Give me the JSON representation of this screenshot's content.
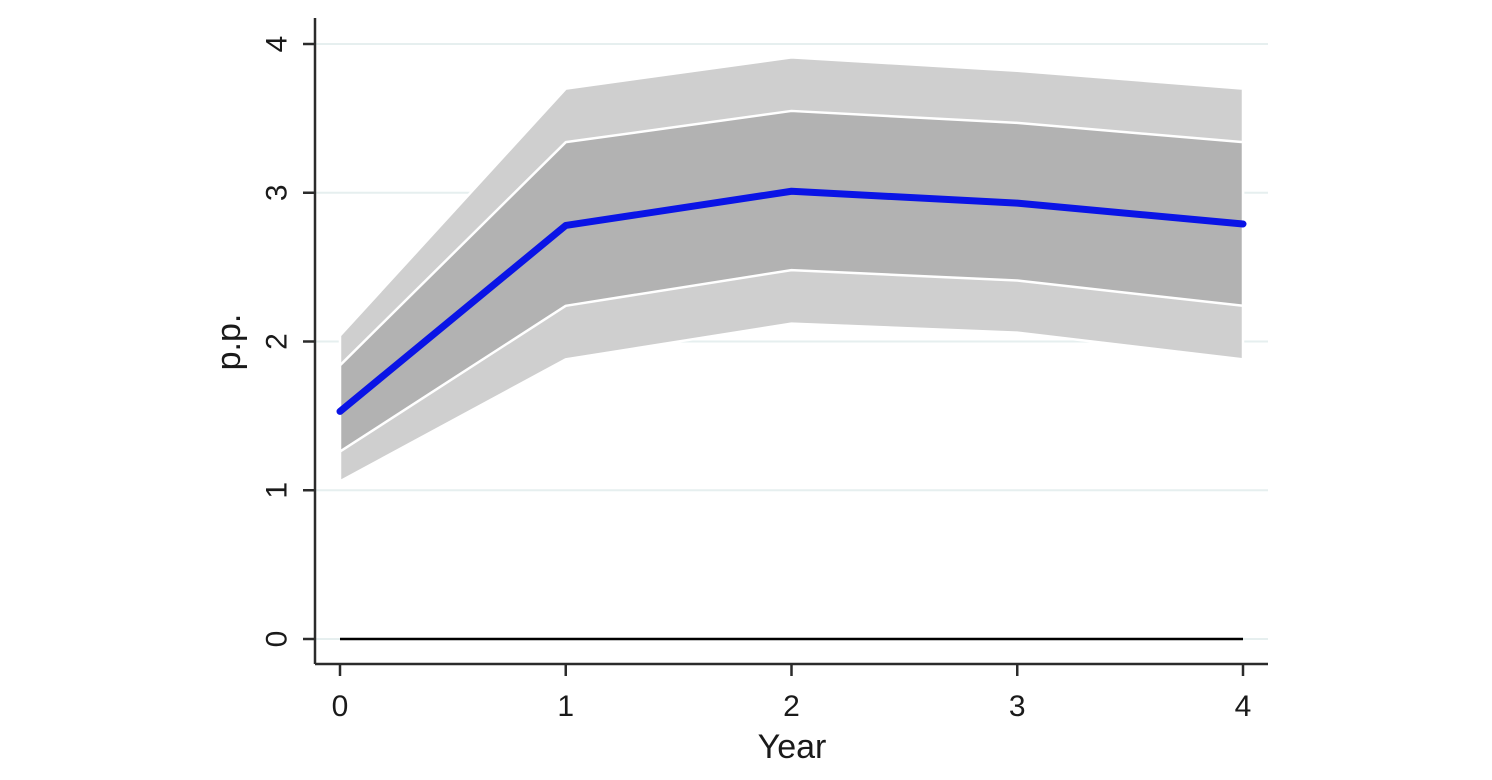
{
  "chart_data": {
    "type": "line",
    "xlabel": "Year",
    "ylabel": "p.p.",
    "x": [
      0,
      1,
      2,
      3,
      4
    ],
    "xticks": [
      "0",
      "1",
      "2",
      "3",
      "4"
    ],
    "yticks": [
      "0",
      "1",
      "2",
      "3",
      "4"
    ],
    "xlim": [
      0,
      4
    ],
    "ylim": [
      0,
      4
    ],
    "grid": "horizontal",
    "legend": "none",
    "zero_line": 0,
    "series": [
      {
        "values": [
          1.53,
          2.78,
          3.01,
          2.93,
          2.79
        ],
        "color": "#0a14e6"
      }
    ],
    "bands": [
      {
        "lower": [
          1.06,
          1.88,
          2.12,
          2.06,
          1.88
        ],
        "upper": [
          2.04,
          3.7,
          3.91,
          3.82,
          3.7
        ],
        "color": "#cfcfcf"
      },
      {
        "lower": [
          1.26,
          2.24,
          2.48,
          2.41,
          2.24
        ],
        "upper": [
          1.84,
          3.34,
          3.55,
          3.47,
          3.34
        ],
        "color": "#b2b2b2"
      }
    ],
    "colors": {
      "grid": "#e6efef",
      "axis": "#2b2b2b",
      "zero_line": "#000000",
      "band_edge": "#ffffff"
    }
  }
}
